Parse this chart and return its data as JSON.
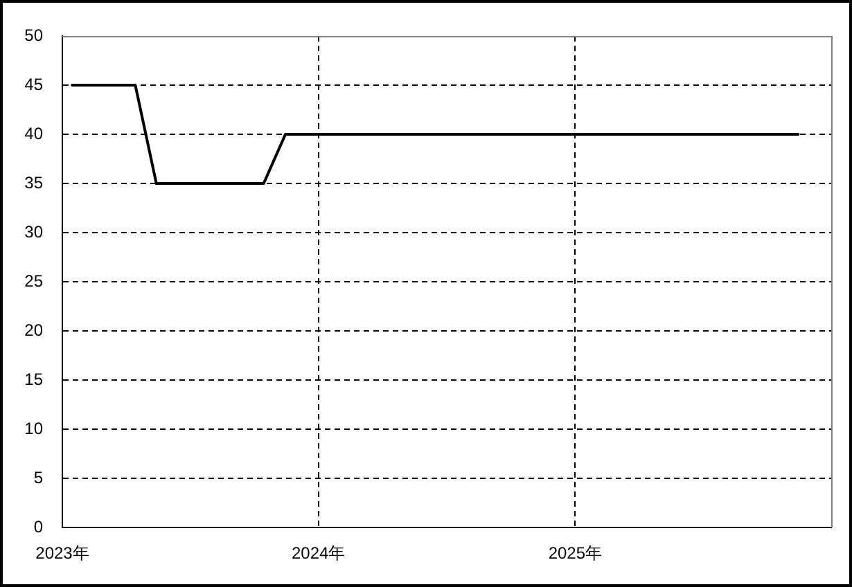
{
  "chart_data": {
    "type": "line",
    "x": [
      "2023-01-15",
      "2023-02-15",
      "2023-03-15",
      "2023-04-15",
      "2023-05-15",
      "2023-06-15",
      "2023-07-15",
      "2023-08-15",
      "2023-09-15",
      "2023-10-15",
      "2023-11-15",
      "2023-12-15",
      "2024-01-15",
      "2024-02-15",
      "2024-03-15",
      "2024-04-15",
      "2024-05-15",
      "2024-06-15",
      "2024-07-15",
      "2024-08-15",
      "2024-09-15",
      "2024-10-15",
      "2024-11-15",
      "2024-12-15",
      "2025-01-15",
      "2025-02-15",
      "2025-03-15",
      "2025-04-15",
      "2025-05-15",
      "2025-06-15",
      "2025-07-15",
      "2025-08-15",
      "2025-09-15",
      "2025-10-15",
      "2025-11-15"
    ],
    "values": [
      45,
      45,
      45,
      45,
      35,
      35,
      35,
      35,
      35,
      35,
      40,
      40,
      40,
      40,
      40,
      40,
      40,
      40,
      40,
      40,
      40,
      40,
      40,
      40,
      40,
      40,
      40,
      40,
      40,
      40,
      40,
      40,
      40,
      40,
      40
    ],
    "color": "#000000",
    "xlim": [
      "2023",
      "2026"
    ],
    "xticks": [
      {
        "value": "2023",
        "label": "2023年"
      },
      {
        "value": "2024",
        "label": "2024年"
      },
      {
        "value": "2025",
        "label": "2025年"
      }
    ],
    "ylim": [
      0,
      50
    ],
    "yticks": [
      0,
      5,
      10,
      15,
      20,
      25,
      30,
      35,
      40,
      45,
      50
    ],
    "grid": true
  }
}
